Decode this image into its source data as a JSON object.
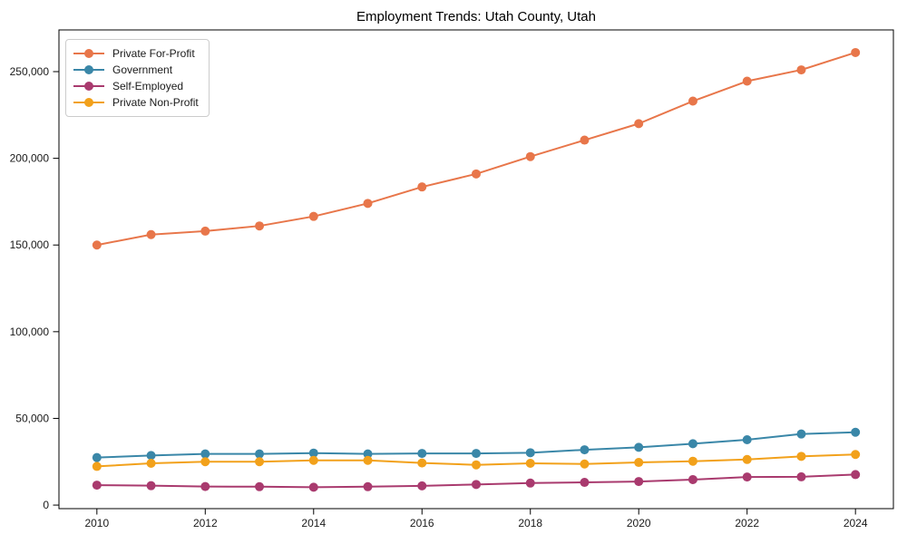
{
  "chart_data": {
    "type": "line",
    "title": "Employment Trends: Utah County, Utah",
    "xlabel": "",
    "ylabel": "",
    "grid": false,
    "legend_position": "upper left",
    "x": [
      2010,
      2011,
      2012,
      2013,
      2014,
      2015,
      2016,
      2017,
      2018,
      2019,
      2020,
      2021,
      2022,
      2023,
      2024
    ],
    "xlim": [
      2009.3,
      2024.7
    ],
    "ylim": [
      -2050,
      274050
    ],
    "xticks": [
      {
        "v": 2010,
        "label": "2010"
      },
      {
        "v": 2012,
        "label": "2012"
      },
      {
        "v": 2014,
        "label": "2014"
      },
      {
        "v": 2016,
        "label": "2016"
      },
      {
        "v": 2018,
        "label": "2018"
      },
      {
        "v": 2020,
        "label": "2020"
      },
      {
        "v": 2022,
        "label": "2022"
      },
      {
        "v": 2024,
        "label": "2024"
      }
    ],
    "yticks": [
      {
        "v": 0,
        "label": "0"
      },
      {
        "v": 50000,
        "label": "50,000"
      },
      {
        "v": 100000,
        "label": "100,000"
      },
      {
        "v": 150000,
        "label": "150,000"
      },
      {
        "v": 200000,
        "label": "200,000"
      },
      {
        "v": 250000,
        "label": "250,000"
      }
    ],
    "series": [
      {
        "name": "Private For-Profit",
        "color": "#e8764a",
        "values": [
          150000,
          156000,
          158000,
          161000,
          166500,
          174000,
          183500,
          191000,
          201000,
          210500,
          220000,
          233000,
          244500,
          251000,
          261000
        ]
      },
      {
        "name": "Government",
        "color": "#3a87a8",
        "values": [
          27400,
          28600,
          29500,
          29500,
          30000,
          29500,
          29800,
          29800,
          30200,
          31900,
          33300,
          35400,
          37700,
          41000,
          42000
        ]
      },
      {
        "name": "Self-Employed",
        "color": "#a93a6e",
        "values": [
          11500,
          11200,
          10700,
          10600,
          10300,
          10600,
          11100,
          11900,
          12700,
          13100,
          13600,
          14700,
          16200,
          16300,
          17600
        ]
      },
      {
        "name": "Private Non-Profit",
        "color": "#f2a11b",
        "values": [
          22300,
          24100,
          25000,
          25000,
          25800,
          25800,
          24300,
          23200,
          24100,
          23700,
          24600,
          25300,
          26300,
          28100,
          29200
        ]
      }
    ],
    "style": {
      "axis_color": "#000000",
      "tick_label_color": "#1a1a1a",
      "background": "#ffffff",
      "legend_border": "#cccccc",
      "line_width": 2,
      "marker_radius": 5
    }
  }
}
